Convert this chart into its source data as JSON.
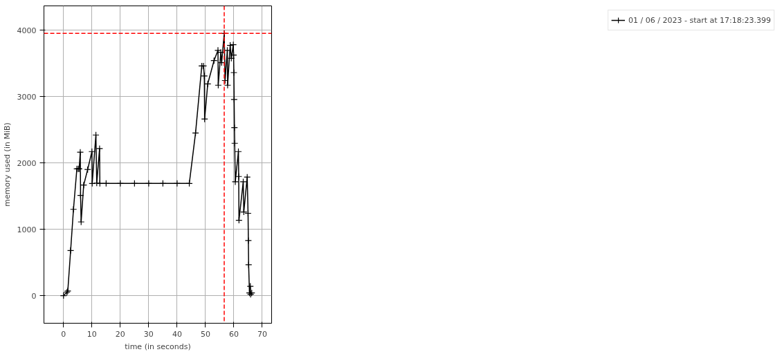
{
  "chart_data": {
    "type": "line",
    "xlabel": "time (in seconds)",
    "ylabel": "memory used (in MiB)",
    "xlim": [
      -6.9,
      73.3
    ],
    "ylim": [
      -416,
      4365
    ],
    "xticks": [
      0,
      10,
      20,
      30,
      40,
      50,
      60,
      70
    ],
    "yticks": [
      0,
      1000,
      2000,
      3000,
      4000
    ],
    "grid": true,
    "legend": "right",
    "marker": "cross",
    "line_style": "solid",
    "series": [
      {
        "name": "01 / 06 / 2023 - start at 17:18:23.399",
        "color": "#000000",
        "x": [
          0,
          1.2,
          1.5,
          2.5,
          3.5,
          4.7,
          5.2,
          5.5,
          5.9,
          6.0,
          6.2,
          7.1,
          8.5,
          10.0,
          10.1,
          11.4,
          11.7,
          12.7,
          12.8,
          15,
          20,
          25,
          30,
          35,
          40,
          44.3,
          46.5,
          48.7,
          49.3,
          49.6,
          49.7,
          50.8,
          53.0,
          54.4,
          54.5,
          55.4,
          55.7,
          56.6,
          56.9,
          57.7,
          57.8,
          58.7,
          59.1,
          59.8,
          59.9,
          60.0,
          60.1,
          60.2,
          60.3,
          60.5,
          61.6,
          61.7,
          61.8,
          63.3,
          63.5,
          64.7,
          65.0,
          65.1,
          65.2,
          65.5,
          65.8,
          65.9,
          66.3
        ],
        "values": [
          0,
          50,
          70,
          680,
          1300,
          1910,
          1910,
          1910,
          2160,
          1510,
          1110,
          1665,
          1900,
          2170,
          1690,
          2420,
          1695,
          2215,
          1690,
          1690,
          1690,
          1690,
          1690,
          1690,
          1690,
          1690,
          2450,
          3460,
          3460,
          3310,
          2660,
          3190,
          3540,
          3695,
          3170,
          3665,
          3510,
          3950,
          3240,
          3695,
          3170,
          3770,
          3575,
          3780,
          3625,
          3360,
          2955,
          2530,
          2295,
          1715,
          2170,
          1795,
          1135,
          1715,
          1260,
          1785,
          1240,
          830,
          465,
          40,
          140,
          20,
          40
        ]
      }
    ],
    "ref_lines": [
      {
        "axis": "y",
        "value": 3950,
        "color": "#ff0000",
        "line_style": "dashed"
      },
      {
        "axis": "x",
        "value": 56.6,
        "color": "#ff0000",
        "line_style": "dashed"
      }
    ]
  }
}
